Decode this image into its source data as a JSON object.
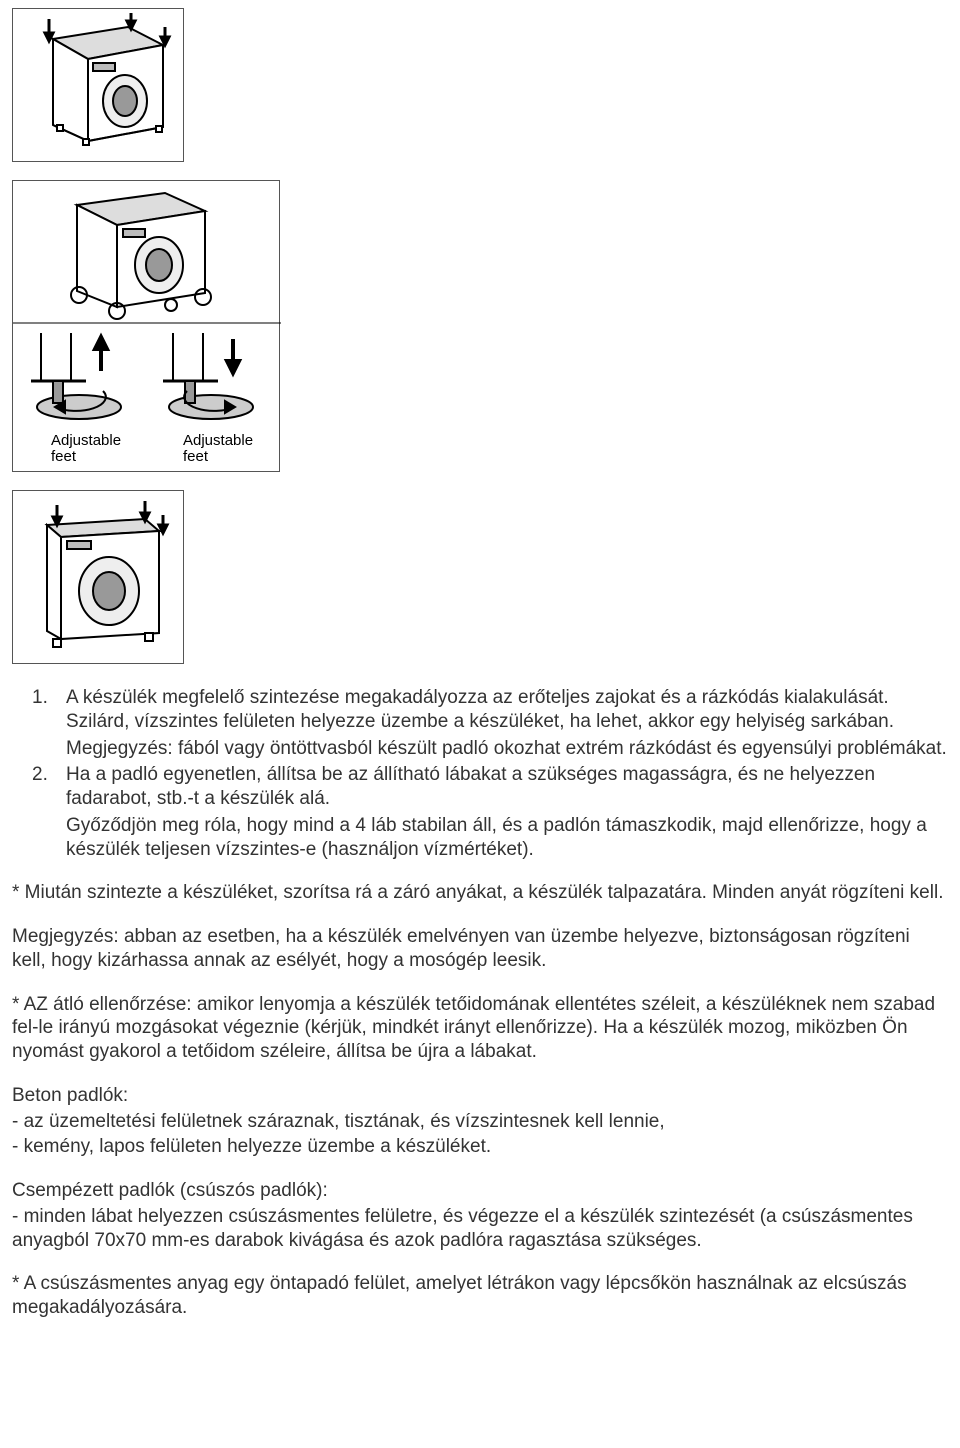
{
  "figures": {
    "fig1": {
      "border_color": "#555555"
    },
    "fig2": {
      "label_left": "Adjustable feet",
      "label_right": "Adjustable feet"
    },
    "fig3": {}
  },
  "list": {
    "item1_num": "1.",
    "item1_text": "A készülék megfelelő szintezése megakadályozza az erőteljes zajokat és a rázkódás kialakulását. Szilárd, vízszintes felületen helyezze üzembe a készüléket, ha lehet, akkor egy helyiség sarkában.",
    "note1": "Megjegyzés: fából vagy öntöttvasból készült padló okozhat extrém rázkódást és egyensúlyi problémákat.",
    "item2_num": "2.",
    "item2_text": "Ha a padló egyenetlen, állítsa be az állítható lábakat a szükséges magasságra, és ne helyezzen fadarabot, stb.-t a készülék alá.",
    "item2_cont": "Győződjön meg róla, hogy mind a 4 láb stabilan áll, és a padlón támaszkodik, majd ellenőrizze, hogy a készülék teljesen vízszintes-e (használjon vízmértéket)."
  },
  "p1": "* Miután szintezte a készüléket, szorítsa rá a záró anyákat, a készülék talpazatára. Minden anyát rögzíteni kell.",
  "p2": "Megjegyzés: abban az esetben, ha a készülék emelvényen van üzembe helyezve, biztonságosan rögzíteni kell, hogy kizárhassa annak az esélyét, hogy a mosógép leesik.",
  "p3": "* AZ átló ellenőrzése: amikor lenyomja a készülék tetőidomának ellentétes széleit, a készüléknek nem szabad fel-le irányú mozgásokat végeznie (kérjük, mindkét irányt ellenőrizze). Ha a készülék mozog, miközben Ön nyomást gyakorol a tetőidom széleire, állítsa be újra a lábakat.",
  "beton_heading": "Beton padlók:",
  "beton_b1": "- az üzemeltetési felületnek száraznak, tisztának, és vízszintesnek kell lennie,",
  "beton_b2": "- kemény, lapos felületen helyezze üzembe a készüléket.",
  "csempe_heading": "Csempézett padlók (csúszós padlók):",
  "csempe_b1": "- minden lábat helyezzen csúszásmentes felületre, és végezze el a készülék szintezését (a csúszásmentes anyagból 70x70 mm-es darabok kivágása és azok padlóra ragasztása szükséges.",
  "p4": "* A csúszásmentes anyag egy öntapadó felület, amelyet létrákon vagy lépcsőkön használnak az elcsúszás megakadályozására."
}
